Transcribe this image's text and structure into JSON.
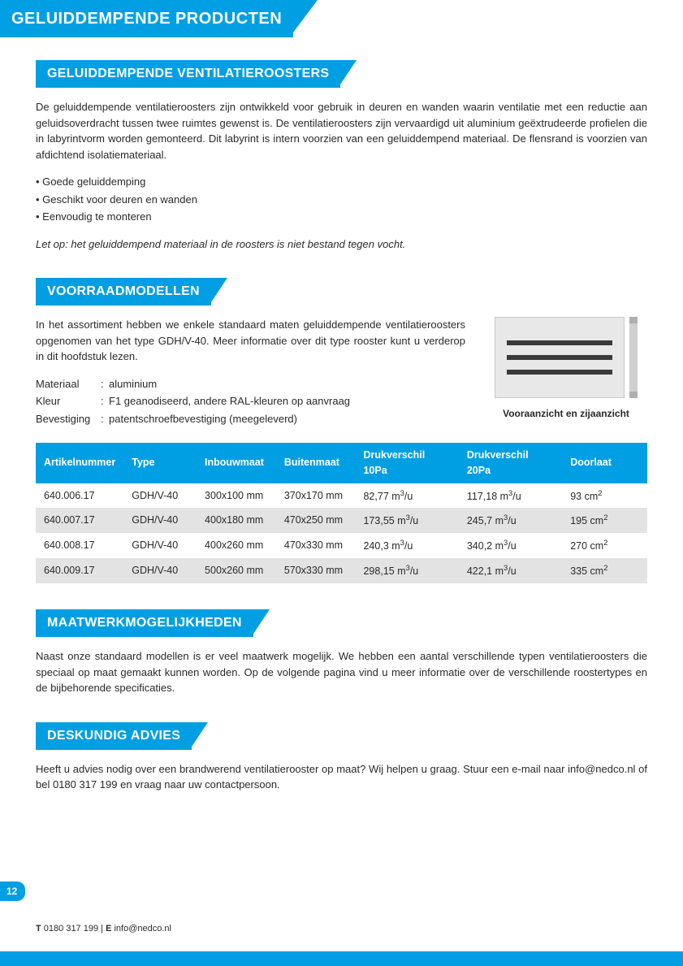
{
  "colors": {
    "brand": "#009fe3",
    "text": "#2a2a2a",
    "row_alt": "#e3e3e3",
    "white": "#ffffff"
  },
  "header": {
    "title": "GELUIDDEMPENDE PRODUCTEN"
  },
  "section1": {
    "title": "GELUIDDEMPENDE VENTILATIEROOSTERS",
    "para": "De geluiddempende ventilatieroosters zijn ontwikkeld voor gebruik in deuren en wanden waarin ventilatie met een reductie aan geluidsoverdracht tussen twee ruimtes gewenst is. De ventilatieroosters zijn vervaardigd uit aluminium geëxtrudeerde profielen die in labyrintvorm worden gemonteerd. Dit labyrint is intern voorzien van een geluiddempend materiaal. De flensrand is voorzien van afdichtend isolatiemateriaal.",
    "bullets": [
      "Goede geluiddemping",
      "Geschikt voor deuren en wanden",
      "Eenvoudig te monteren"
    ],
    "note": "Let op: het geluiddempend materiaal in de roosters is niet bestand tegen vocht."
  },
  "section2": {
    "title": "VOORRAADMODELLEN",
    "para": "In het assortiment hebben we enkele standaard maten geluiddempende ventilatieroosters opgenomen van het type GDH/V-40. Meer informatie over dit type rooster kunt u verderop in dit hoofdstuk lezen.",
    "specs": [
      {
        "label": "Materiaal",
        "value": "aluminium"
      },
      {
        "label": "Kleur",
        "value": "F1 geanodiseerd, andere RAL-kleuren op aanvraag"
      },
      {
        "label": "Bevestiging",
        "value": "patentschroefbevestiging (meegeleverd)"
      }
    ],
    "image_caption": "Vooraanzicht en zijaanzicht"
  },
  "table": {
    "columns": [
      "Artikelnummer",
      "Type",
      "Inbouwmaat",
      "Buitenmaat",
      "Drukverschil 10Pa",
      "Drukverschil 20Pa",
      "Doorlaat"
    ],
    "col_widths": [
      "14%",
      "12%",
      "13%",
      "13%",
      "17%",
      "17%",
      "14%"
    ],
    "rows": [
      [
        "640.006.17",
        "GDH/V-40",
        "300x100 mm",
        "370x170 mm",
        "82,77 m³/u",
        "117,18 m³/u",
        "93 cm²"
      ],
      [
        "640.007.17",
        "GDH/V-40",
        "400x180 mm",
        "470x250 mm",
        "173,55 m³/u",
        "245,7 m³/u",
        "195 cm²"
      ],
      [
        "640.008.17",
        "GDH/V-40",
        "400x260 mm",
        "470x330 mm",
        "240,3 m³/u",
        "340,2 m³/u",
        "270 cm²"
      ],
      [
        "640.009.17",
        "GDH/V-40",
        "500x260 mm",
        "570x330 mm",
        "298,15 m³/u",
        "422,1 m³/u",
        "335 cm²"
      ]
    ]
  },
  "section3": {
    "title": "MAATWERKMOGELIJKHEDEN",
    "para": "Naast onze standaard modellen is er veel maatwerk mogelijk. We hebben een aantal verschillende typen ventilatieroosters die speciaal op maat gemaakt kunnen worden. Op de volgende pagina vind u meer informatie over de verschillende roostertypes en de bijbehorende specificaties."
  },
  "section4": {
    "title": "DESKUNDIG ADVIES",
    "para": "Heeft u advies nodig over een brandwerend ventilatierooster op maat? Wij helpen u graag. Stuur een e-mail naar info@nedco.nl of bel 0180 317 199 en vraag naar uw contactpersoon."
  },
  "page_number": "12",
  "footer": {
    "phone_label": "T",
    "phone": "0180 317 199",
    "sep": "  |  ",
    "email_label": "E",
    "email": "info@nedco.nl"
  }
}
